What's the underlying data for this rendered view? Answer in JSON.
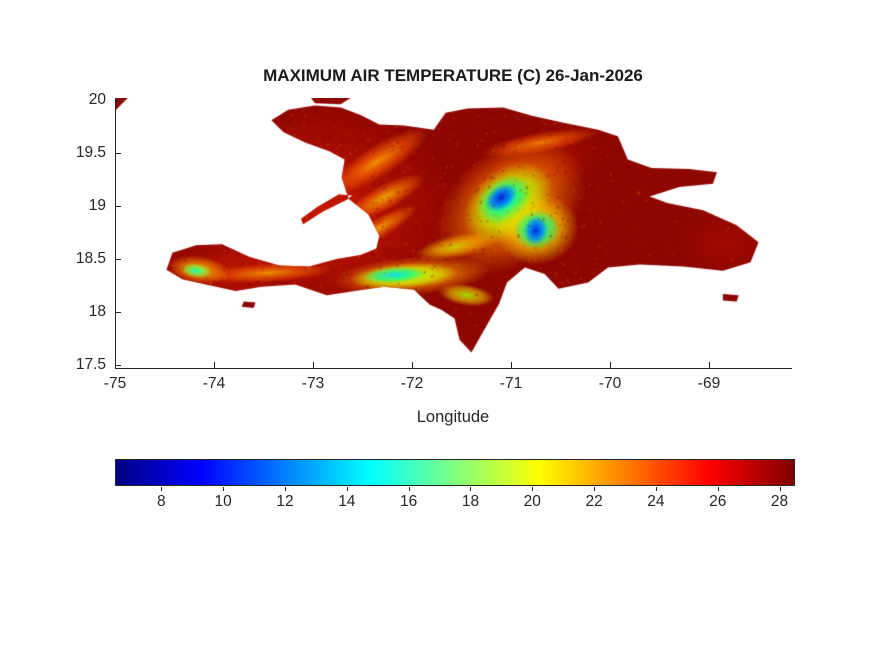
{
  "title": "MAXIMUM AIR TEMPERATURE (C) 26-Jan-2026",
  "axes": {
    "xlabel": "Longitude",
    "x_ticks": [
      -75,
      -74,
      -73,
      -72,
      -71,
      -70,
      -69
    ],
    "y_ticks": [
      20,
      19.5,
      19,
      18.5,
      18,
      17.5
    ]
  },
  "colorbar": {
    "ticks": [
      8,
      10,
      12,
      14,
      16,
      18,
      20,
      22,
      24,
      26,
      28
    ],
    "range": [
      6.5,
      28.5
    ],
    "colormap": "jet",
    "stops": [
      [
        0,
        "#000080"
      ],
      [
        0.125,
        "#0000ff"
      ],
      [
        0.375,
        "#00ffff"
      ],
      [
        0.625,
        "#ffff00"
      ],
      [
        0.875,
        "#ff0000"
      ],
      [
        1,
        "#800000"
      ]
    ]
  },
  "chart_data": {
    "type": "heatmap",
    "title": "MAXIMUM AIR TEMPERATURE (C) 26-Jan-2026",
    "xlabel": "Longitude",
    "ylabel": "",
    "x_ticks": [
      -75,
      -74,
      -73,
      -72,
      -71,
      -70,
      -69
    ],
    "y_ticks": [
      20,
      19.5,
      19,
      18.5,
      18,
      17.5
    ],
    "xlim": [
      -75,
      -68.17
    ],
    "ylim": [
      17.47,
      20.02
    ],
    "units": "degrees Celsius",
    "region": "Island of Hispaniola (Haiti and Dominican Republic); tiny tip of Cuba clipped at top-left corner; Gonave, Tortue, Saona and Vache islets visible",
    "colormap": "jet",
    "color_range": [
      6.5,
      28.5
    ],
    "colorbar_ticks": [
      8,
      10,
      12,
      14,
      16,
      18,
      20,
      22,
      24,
      26,
      28
    ],
    "value_summary": {
      "coastal_lowlands": "27-28.5 C (dark red, dominant over eastern Dominican Republic and coasts)",
      "interior_hills": "20-26 C (orange / yellow streaks over Haitian massifs and valleys)",
      "cordillera_central_peaks": "8-14 C (blue core near lon -71.1, lat 19.1)",
      "valle_nuevo_peaks": "8-14 C (blue core near lon -70.75, lat 18.77)",
      "massif_de_la_selle_bahoruco": "14-18 C (cyan band near lon -72.2, lat 18.35)",
      "massif_de_la_hotte": "15-18 C (cyan patch near lon -74.2, lat 18.4)"
    },
    "base_color": "#8e0600",
    "geometry": {
      "islands": [
        {
          "name": "hispaniola",
          "points": [
            [
              -73.42,
              19.81
            ],
            [
              -73.25,
              19.91
            ],
            [
              -72.98,
              19.95
            ],
            [
              -72.72,
              19.93
            ],
            [
              -72.52,
              19.86
            ],
            [
              -72.33,
              19.77
            ],
            [
              -72.08,
              19.76
            ],
            [
              -71.78,
              19.72
            ],
            [
              -71.66,
              19.88
            ],
            [
              -71.44,
              19.92
            ],
            [
              -71.08,
              19.93
            ],
            [
              -70.78,
              19.85
            ],
            [
              -70.48,
              19.79
            ],
            [
              -70.12,
              19.72
            ],
            [
              -69.92,
              19.66
            ],
            [
              -69.82,
              19.44
            ],
            [
              -69.58,
              19.36
            ],
            [
              -69.2,
              19.35
            ],
            [
              -68.92,
              19.32
            ],
            [
              -68.96,
              19.21
            ],
            [
              -69.3,
              19.18
            ],
            [
              -69.6,
              19.09
            ],
            [
              -69.42,
              19.03
            ],
            [
              -69.06,
              18.96
            ],
            [
              -68.72,
              18.82
            ],
            [
              -68.5,
              18.66
            ],
            [
              -68.58,
              18.47
            ],
            [
              -68.86,
              18.39
            ],
            [
              -69.26,
              18.43
            ],
            [
              -69.7,
              18.45
            ],
            [
              -70.02,
              18.42
            ],
            [
              -70.22,
              18.28
            ],
            [
              -70.52,
              18.22
            ],
            [
              -70.66,
              18.36
            ],
            [
              -70.86,
              18.42
            ],
            [
              -71.04,
              18.28
            ],
            [
              -71.12,
              18.08
            ],
            [
              -71.26,
              17.85
            ],
            [
              -71.4,
              17.62
            ],
            [
              -71.52,
              17.74
            ],
            [
              -71.57,
              17.94
            ],
            [
              -71.7,
              18.02
            ],
            [
              -71.82,
              18.07
            ],
            [
              -71.98,
              18.21
            ],
            [
              -72.28,
              18.24
            ],
            [
              -72.58,
              18.2
            ],
            [
              -72.86,
              18.16
            ],
            [
              -73.18,
              18.26
            ],
            [
              -73.52,
              18.24
            ],
            [
              -73.78,
              18.2
            ],
            [
              -74.08,
              18.26
            ],
            [
              -74.32,
              18.31
            ],
            [
              -74.48,
              18.4
            ],
            [
              -74.42,
              18.56
            ],
            [
              -74.18,
              18.63
            ],
            [
              -73.92,
              18.64
            ],
            [
              -73.64,
              18.52
            ],
            [
              -73.34,
              18.44
            ],
            [
              -73.04,
              18.43
            ],
            [
              -72.76,
              18.5
            ],
            [
              -72.52,
              18.54
            ],
            [
              -72.36,
              18.6
            ],
            [
              -72.33,
              18.72
            ],
            [
              -72.44,
              18.92
            ],
            [
              -72.64,
              19.07
            ],
            [
              -72.71,
              19.27
            ],
            [
              -72.68,
              19.44
            ],
            [
              -72.84,
              19.52
            ],
            [
              -73.08,
              19.6
            ],
            [
              -73.3,
              19.7
            ]
          ]
        },
        {
          "name": "gonave",
          "points": [
            [
              -73.1,
              18.83
            ],
            [
              -72.9,
              18.95
            ],
            [
              -72.66,
              19.06
            ],
            [
              -72.6,
              19.1
            ],
            [
              -72.74,
              19.11
            ],
            [
              -72.96,
              18.99
            ],
            [
              -73.12,
              18.88
            ]
          ]
        },
        {
          "name": "tortue-sliver",
          "points": [
            [
              -73.02,
              20.02
            ],
            [
              -72.62,
              20.02
            ],
            [
              -72.72,
              19.96
            ],
            [
              -72.98,
              19.97
            ]
          ]
        },
        {
          "name": "cuba-corner",
          "points": [
            [
              -75.01,
              20.03
            ],
            [
              -74.86,
              20.03
            ],
            [
              -75.01,
              19.89
            ]
          ]
        },
        {
          "name": "saona",
          "points": [
            [
              -68.86,
              18.17
            ],
            [
              -68.7,
              18.16
            ],
            [
              -68.72,
              18.1
            ],
            [
              -68.86,
              18.11
            ]
          ]
        },
        {
          "name": "ile-a-vache",
          "points": [
            [
              -73.7,
              18.1
            ],
            [
              -73.58,
              18.09
            ],
            [
              -73.6,
              18.04
            ],
            [
              -73.72,
              18.05
            ]
          ]
        }
      ]
    },
    "features": [
      {
        "name": "haiti-warm-wash",
        "cx": -72.9,
        "cy": 18.95,
        "rx": 1.35,
        "ry": 1.05,
        "rot": 0,
        "stops": [
          [
            0,
            "rgba(224,28,0,0.70)"
          ],
          [
            1,
            "rgba(224,28,0,0)"
          ]
        ]
      },
      {
        "name": "tiburon-warm-wash",
        "cx": -73.9,
        "cy": 18.38,
        "rx": 0.85,
        "ry": 0.3,
        "rot": -5,
        "stops": [
          [
            0,
            "rgba(224,30,0,0.55)"
          ],
          [
            1,
            "rgba(224,30,0,0)"
          ]
        ]
      },
      {
        "name": "cibao-warm-wash",
        "cx": -70.8,
        "cy": 19.35,
        "rx": 0.8,
        "ry": 0.28,
        "rot": -15,
        "stops": [
          [
            0,
            "rgba(205,18,0,0.50)"
          ],
          [
            1,
            "rgba(205,18,0,0)"
          ]
        ]
      },
      {
        "name": "east-coast-wash",
        "cx": -68.85,
        "cy": 18.65,
        "rx": 0.45,
        "ry": 0.3,
        "rot": 0,
        "stops": [
          [
            0,
            "rgba(200,16,0,0.40)"
          ],
          [
            1,
            "rgba(200,16,0,0)"
          ]
        ]
      },
      {
        "name": "massif-du-nord-streak",
        "cx": -72.35,
        "cy": 19.42,
        "rx": 0.6,
        "ry": 0.15,
        "rot": -32,
        "stops": [
          [
            0,
            "rgba(255,170,0,0.85)"
          ],
          [
            0.55,
            "rgba(255,100,0,0.55)"
          ],
          [
            1,
            "rgba(255,100,0,0)"
          ]
        ]
      },
      {
        "name": "cordillera-septentrional-streak",
        "cx": -70.7,
        "cy": 19.6,
        "rx": 0.6,
        "ry": 0.1,
        "rot": -10,
        "stops": [
          [
            0,
            "rgba(255,150,0,0.80)"
          ],
          [
            0.6,
            "rgba(255,90,0,0.45)"
          ],
          [
            1,
            "rgba(255,90,0,0)"
          ]
        ]
      },
      {
        "name": "montagnes-noires-streak",
        "cx": -72.28,
        "cy": 19.08,
        "rx": 0.45,
        "ry": 0.12,
        "rot": -28,
        "stops": [
          [
            0,
            "rgba(255,210,0,0.80)"
          ],
          [
            0.6,
            "rgba(255,120,0,0.50)"
          ],
          [
            1,
            "rgba(255,120,0,0)"
          ]
        ]
      },
      {
        "name": "matheux-streak",
        "cx": -72.32,
        "cy": 18.8,
        "rx": 0.42,
        "ry": 0.1,
        "rot": -30,
        "stops": [
          [
            0,
            "rgba(255,190,0,0.80)"
          ],
          [
            0.6,
            "rgba(255,120,0,0.45)"
          ],
          [
            1,
            "rgba(255,120,0,0)"
          ]
        ]
      },
      {
        "name": "tiburon-ridge-streak",
        "cx": -73.45,
        "cy": 18.37,
        "rx": 0.65,
        "ry": 0.09,
        "rot": -3,
        "stops": [
          [
            0,
            "rgba(255,190,0,0.75)"
          ],
          [
            0.6,
            "rgba(255,110,0,0.45)"
          ],
          [
            1,
            "rgba(255,110,0,0)"
          ]
        ]
      },
      {
        "name": "neiba-streak",
        "cx": -71.55,
        "cy": 18.62,
        "rx": 0.42,
        "ry": 0.11,
        "rot": -12,
        "stops": [
          [
            0,
            "rgba(200,255,0,0.85)"
          ],
          [
            0.5,
            "rgba(255,210,0,0.60)"
          ],
          [
            1,
            "rgba(255,210,0,0)"
          ]
        ]
      },
      {
        "name": "cordillera-central-halo",
        "cx": -71.0,
        "cy": 19.0,
        "rx": 0.85,
        "ry": 0.55,
        "rot": -38,
        "stops": [
          [
            0,
            "rgba(255,220,0,0.85)"
          ],
          [
            0.5,
            "rgba(255,150,0,0.60)"
          ],
          [
            1,
            "rgba(255,120,0,0)"
          ]
        ]
      },
      {
        "name": "cordillera-central-green",
        "cx": -71.03,
        "cy": 19.03,
        "rx": 0.5,
        "ry": 0.32,
        "rot": -38,
        "stops": [
          [
            0,
            "rgba(90,255,60,0.90)"
          ],
          [
            0.6,
            "rgba(190,255,0,0.60)"
          ],
          [
            1,
            "rgba(190,255,0,0)"
          ]
        ]
      },
      {
        "name": "cordillera-central-cyan",
        "cx": -71.07,
        "cy": 19.06,
        "rx": 0.3,
        "ry": 0.2,
        "rot": -35,
        "stops": [
          [
            0,
            "rgba(0,225,255,0.95)"
          ],
          [
            0.6,
            "rgba(0,255,150,0.60)"
          ],
          [
            1,
            "rgba(0,255,150,0)"
          ]
        ]
      },
      {
        "name": "cordillera-central-blue-core",
        "cx": -71.1,
        "cy": 19.08,
        "rx": 0.18,
        "ry": 0.11,
        "rot": -35,
        "stops": [
          [
            0,
            "rgba(0,35,215,1)"
          ],
          [
            0.55,
            "rgba(0,110,255,0.80)"
          ],
          [
            1,
            "rgba(0,110,255,0)"
          ]
        ]
      },
      {
        "name": "valle-nuevo-halo",
        "cx": -70.73,
        "cy": 18.78,
        "rx": 0.42,
        "ry": 0.33,
        "rot": -10,
        "stops": [
          [
            0,
            "rgba(170,255,0,0.85)"
          ],
          [
            0.55,
            "rgba(255,220,0,0.60)"
          ],
          [
            1,
            "rgba(255,220,0,0)"
          ]
        ]
      },
      {
        "name": "valle-nuevo-cyan",
        "cx": -70.74,
        "cy": 18.78,
        "rx": 0.24,
        "ry": 0.19,
        "rot": -10,
        "stops": [
          [
            0,
            "rgba(0,220,255,0.95)"
          ],
          [
            0.6,
            "rgba(0,255,140,0.60)"
          ],
          [
            1,
            "rgba(0,255,140,0)"
          ]
        ]
      },
      {
        "name": "valle-nuevo-blue-core",
        "cx": -70.75,
        "cy": 18.77,
        "rx": 0.12,
        "ry": 0.14,
        "rot": 10,
        "stops": [
          [
            0,
            "rgba(0,40,220,1)"
          ],
          [
            0.55,
            "rgba(0,120,255,0.80)"
          ],
          [
            1,
            "rgba(0,120,255,0)"
          ]
        ]
      },
      {
        "name": "selle-halo",
        "cx": -72.0,
        "cy": 18.34,
        "rx": 0.8,
        "ry": 0.18,
        "rot": -4,
        "stops": [
          [
            0,
            "rgba(255,230,0,0.85)"
          ],
          [
            0.55,
            "rgba(255,160,0,0.55)"
          ],
          [
            1,
            "rgba(255,160,0,0)"
          ]
        ]
      },
      {
        "name": "selle-green",
        "cx": -72.08,
        "cy": 18.34,
        "rx": 0.55,
        "ry": 0.12,
        "rot": -4,
        "stops": [
          [
            0,
            "rgba(120,255,40,0.90)"
          ],
          [
            0.6,
            "rgba(210,255,0,0.60)"
          ],
          [
            1,
            "rgba(210,255,0,0)"
          ]
        ]
      },
      {
        "name": "selle-cyan-core",
        "cx": -72.18,
        "cy": 18.35,
        "rx": 0.32,
        "ry": 0.075,
        "rot": -4,
        "stops": [
          [
            0,
            "rgba(0,220,255,0.95)"
          ],
          [
            0.6,
            "rgba(0,255,160,0.60)"
          ],
          [
            1,
            "rgba(0,255,160,0)"
          ]
        ]
      },
      {
        "name": "bahoruco-green",
        "cx": -71.45,
        "cy": 18.16,
        "rx": 0.28,
        "ry": 0.1,
        "rot": 8,
        "stops": [
          [
            0,
            "rgba(160,255,0,0.85)"
          ],
          [
            0.6,
            "rgba(255,230,0,0.50)"
          ],
          [
            1,
            "rgba(255,230,0,0)"
          ]
        ]
      },
      {
        "name": "hotte-halo",
        "cx": -74.15,
        "cy": 18.4,
        "rx": 0.32,
        "ry": 0.13,
        "rot": 8,
        "stops": [
          [
            0,
            "rgba(255,230,0,0.85)"
          ],
          [
            0.6,
            "rgba(255,160,0,0.50)"
          ],
          [
            1,
            "rgba(255,160,0,0)"
          ]
        ]
      },
      {
        "name": "hotte-cyan-core",
        "cx": -74.18,
        "cy": 18.39,
        "rx": 0.16,
        "ry": 0.07,
        "rot": 8,
        "stops": [
          [
            0,
            "rgba(0,255,200,0.95)"
          ],
          [
            0.6,
            "rgba(120,255,80,0.60)"
          ],
          [
            1,
            "rgba(120,255,80,0)"
          ]
        ]
      }
    ]
  }
}
